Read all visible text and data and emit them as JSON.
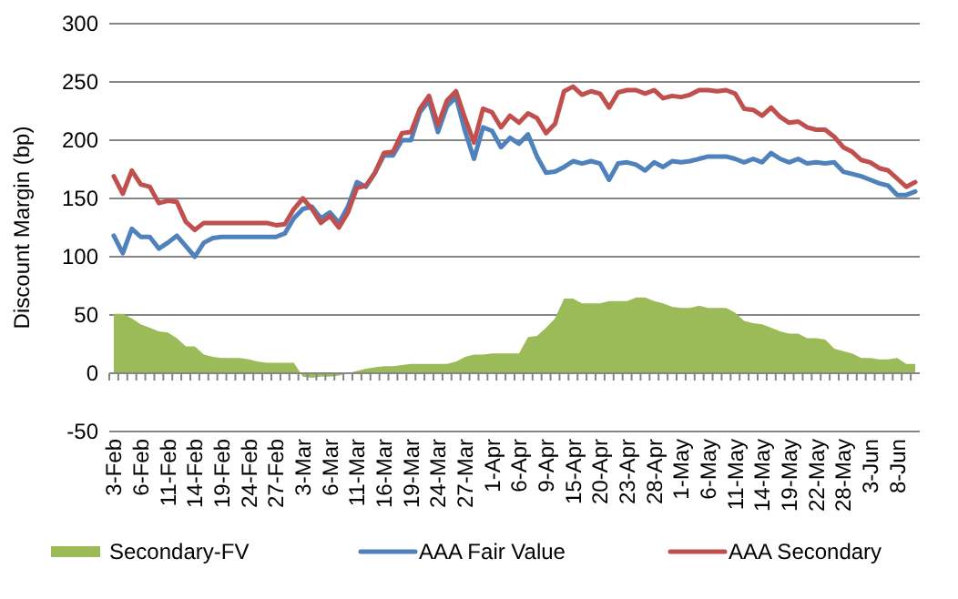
{
  "chart_data": {
    "type": "line",
    "ylabel": "Discount Margin (bp)",
    "categories": [
      "3-Feb",
      null,
      null,
      "6-Feb",
      null,
      null,
      "11-Feb",
      null,
      null,
      "14-Feb",
      null,
      null,
      "19-Feb",
      null,
      null,
      "24-Feb",
      null,
      null,
      "27-Feb",
      null,
      null,
      "3-Mar",
      null,
      null,
      "6-Mar",
      null,
      null,
      "11-Mar",
      null,
      null,
      "16-Mar",
      null,
      null,
      "19-Mar",
      null,
      null,
      "24-Mar",
      null,
      null,
      "27-Mar",
      null,
      null,
      "1-Apr",
      null,
      null,
      "6-Apr",
      null,
      null,
      "9-Apr",
      null,
      null,
      "15-Apr",
      null,
      null,
      "20-Apr",
      null,
      null,
      "23-Apr",
      null,
      null,
      "28-Apr",
      null,
      null,
      "1-May",
      null,
      null,
      "6-May",
      null,
      null,
      "11-May",
      null,
      null,
      "14-May",
      null,
      null,
      "19-May",
      null,
      null,
      "22-May",
      null,
      null,
      "28-May",
      null,
      null,
      "3-Jun",
      null,
      null,
      "8-Jun",
      null,
      null
    ],
    "series": [
      {
        "name": "Secondary-FV",
        "type": "area",
        "color": "#9bbb59",
        "values": [
          51,
          51,
          47,
          42,
          39,
          36,
          35,
          30,
          23,
          23,
          16,
          14,
          13,
          13,
          13,
          12,
          10,
          9,
          9,
          9,
          9,
          -3,
          -4,
          -3,
          -3,
          -2,
          0,
          2,
          4,
          5,
          6,
          6,
          7,
          8,
          8,
          8,
          8,
          8,
          10,
          14,
          16,
          16,
          17,
          17,
          17,
          17,
          31,
          32,
          39,
          47,
          64,
          64,
          60,
          60,
          60,
          62,
          62,
          62,
          65,
          65,
          62,
          60,
          57,
          56,
          56,
          58,
          56,
          56,
          56,
          52,
          45,
          43,
          42,
          39,
          36,
          34,
          34,
          30,
          30,
          29,
          21,
          19,
          17,
          13,
          13,
          12,
          12,
          13,
          8,
          8
        ]
      },
      {
        "name": "AAA Fair Value",
        "color": "#4f81bd",
        "values": [
          118,
          103,
          124,
          117,
          117,
          107,
          112,
          118,
          109,
          100,
          112,
          116,
          117,
          117,
          117,
          117,
          117,
          117,
          117,
          120,
          133,
          141,
          143,
          133,
          138,
          129,
          143,
          164,
          160,
          172,
          187,
          187,
          200,
          200,
          224,
          234,
          207,
          229,
          237,
          208,
          184,
          211,
          208,
          194,
          202,
          197,
          205,
          186,
          172,
          173,
          177,
          182,
          180,
          182,
          180,
          166,
          180,
          181,
          179,
          174,
          181,
          177,
          182,
          181,
          182,
          184,
          186,
          186,
          186,
          184,
          181,
          184,
          181,
          189,
          184,
          181,
          184,
          180,
          181,
          180,
          181,
          173,
          171,
          169,
          166,
          163,
          161,
          153,
          153,
          156
        ]
      },
      {
        "name": "AAA Secondary",
        "color": "#c0504d",
        "values": [
          169,
          154,
          174,
          162,
          160,
          146,
          148,
          147,
          130,
          123,
          129,
          129,
          129,
          129,
          129,
          129,
          129,
          129,
          127,
          128,
          141,
          150,
          141,
          129,
          135,
          125,
          138,
          159,
          161,
          172,
          189,
          190,
          206,
          207,
          227,
          238,
          213,
          234,
          242,
          219,
          198,
          227,
          224,
          211,
          221,
          215,
          223,
          219,
          206,
          214,
          242,
          246,
          239,
          242,
          240,
          228,
          241,
          243,
          243,
          240,
          243,
          236,
          238,
          237,
          239,
          243,
          243,
          242,
          243,
          240,
          227,
          226,
          221,
          228,
          220,
          215,
          216,
          211,
          209,
          209,
          203,
          194,
          190,
          183,
          181,
          176,
          174,
          167,
          160,
          164
        ]
      }
    ],
    "ylim": [
      -50,
      300
    ],
    "yticks": [
      -50,
      0,
      50,
      100,
      150,
      200,
      250,
      300
    ],
    "grid": "y",
    "legend": "bottom"
  }
}
